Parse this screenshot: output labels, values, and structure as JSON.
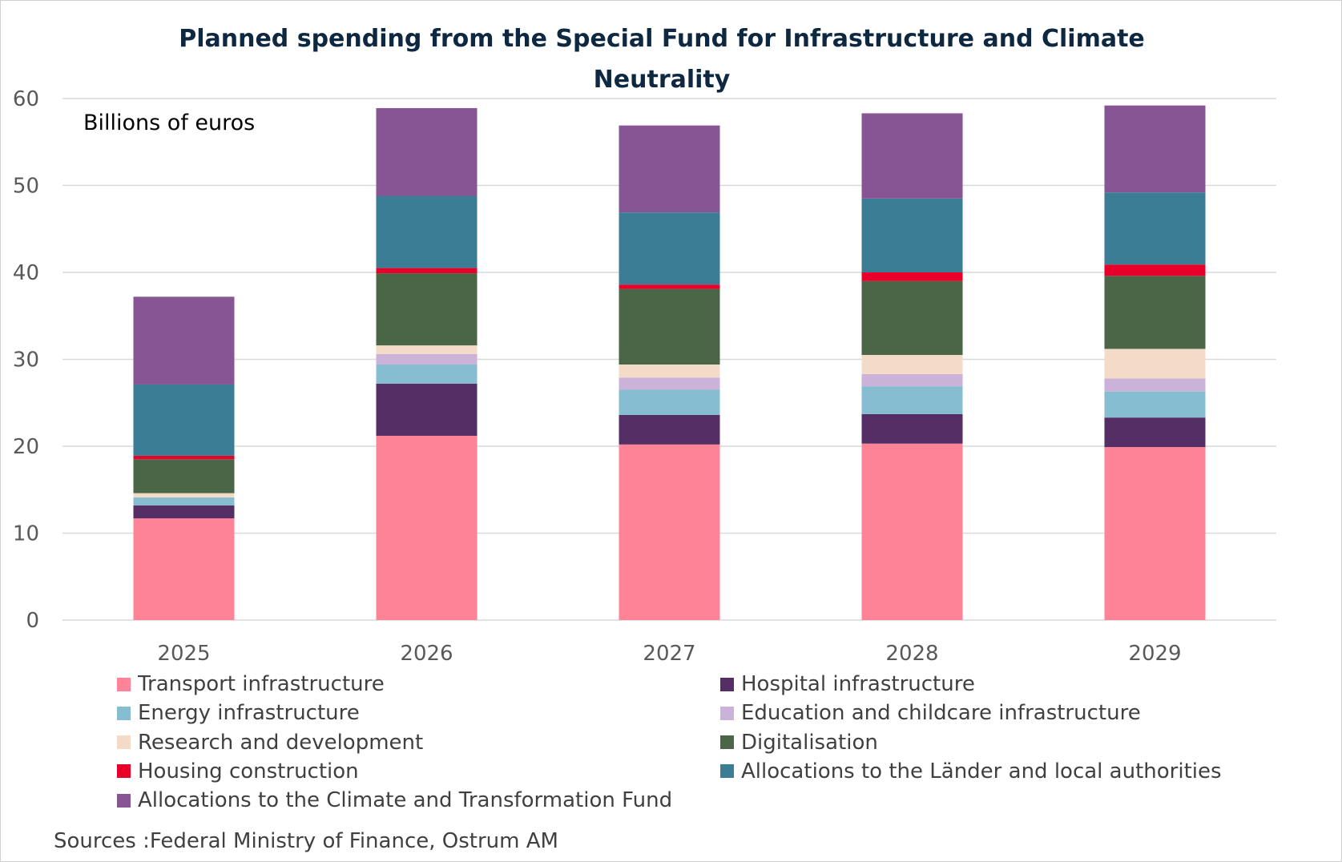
{
  "chart_data": {
    "type": "bar",
    "stacked": true,
    "title": "Planned spending from the Special Fund for Infrastructure and Climate Neutrality",
    "unit_label": "Billions of euros",
    "source": "Sources :Federal Ministry of Finance, Ostrum AM",
    "categories": [
      "2025",
      "2026",
      "2027",
      "2028",
      "2029"
    ],
    "ylim": [
      0,
      60
    ],
    "yticks": [
      "0",
      "10",
      "20",
      "30",
      "40",
      "50",
      "60"
    ],
    "grid": true,
    "legend_position": "bottom",
    "series": [
      {
        "name": "Transport infrastructure",
        "color": "#ff8396",
        "values": [
          11.7,
          21.2,
          20.2,
          20.3,
          19.9
        ]
      },
      {
        "name": "Hospital infrastructure",
        "color": "#552e66",
        "values": [
          1.5,
          6.0,
          3.4,
          3.4,
          3.4
        ]
      },
      {
        "name": "Energy infrastructure",
        "color": "#87bdd0",
        "values": [
          0.9,
          2.2,
          2.9,
          3.2,
          3.0
        ]
      },
      {
        "name": "Education and childcare infrastructure",
        "color": "#cbb2d8",
        "values": [
          0.0,
          1.2,
          1.4,
          1.4,
          1.5
        ]
      },
      {
        "name": "Research and development",
        "color": "#f3dbc8",
        "values": [
          0.5,
          1.0,
          1.5,
          2.2,
          3.4
        ]
      },
      {
        "name": "Digitalisation",
        "color": "#4a6647",
        "values": [
          3.9,
          8.3,
          8.7,
          8.5,
          8.4
        ]
      },
      {
        "name": "Housing construction",
        "color": "#e8002a",
        "values": [
          0.4,
          0.6,
          0.5,
          1.0,
          1.3
        ]
      },
      {
        "name": "Allocations to the Länder and local authorities",
        "color": "#3a7d94",
        "values": [
          8.2,
          8.3,
          8.3,
          8.5,
          8.3
        ]
      },
      {
        "name": "Allocations to the Climate and Transformation Fund",
        "color": "#885594",
        "values": [
          10.1,
          10.1,
          10.0,
          9.8,
          10.0
        ]
      }
    ]
  }
}
